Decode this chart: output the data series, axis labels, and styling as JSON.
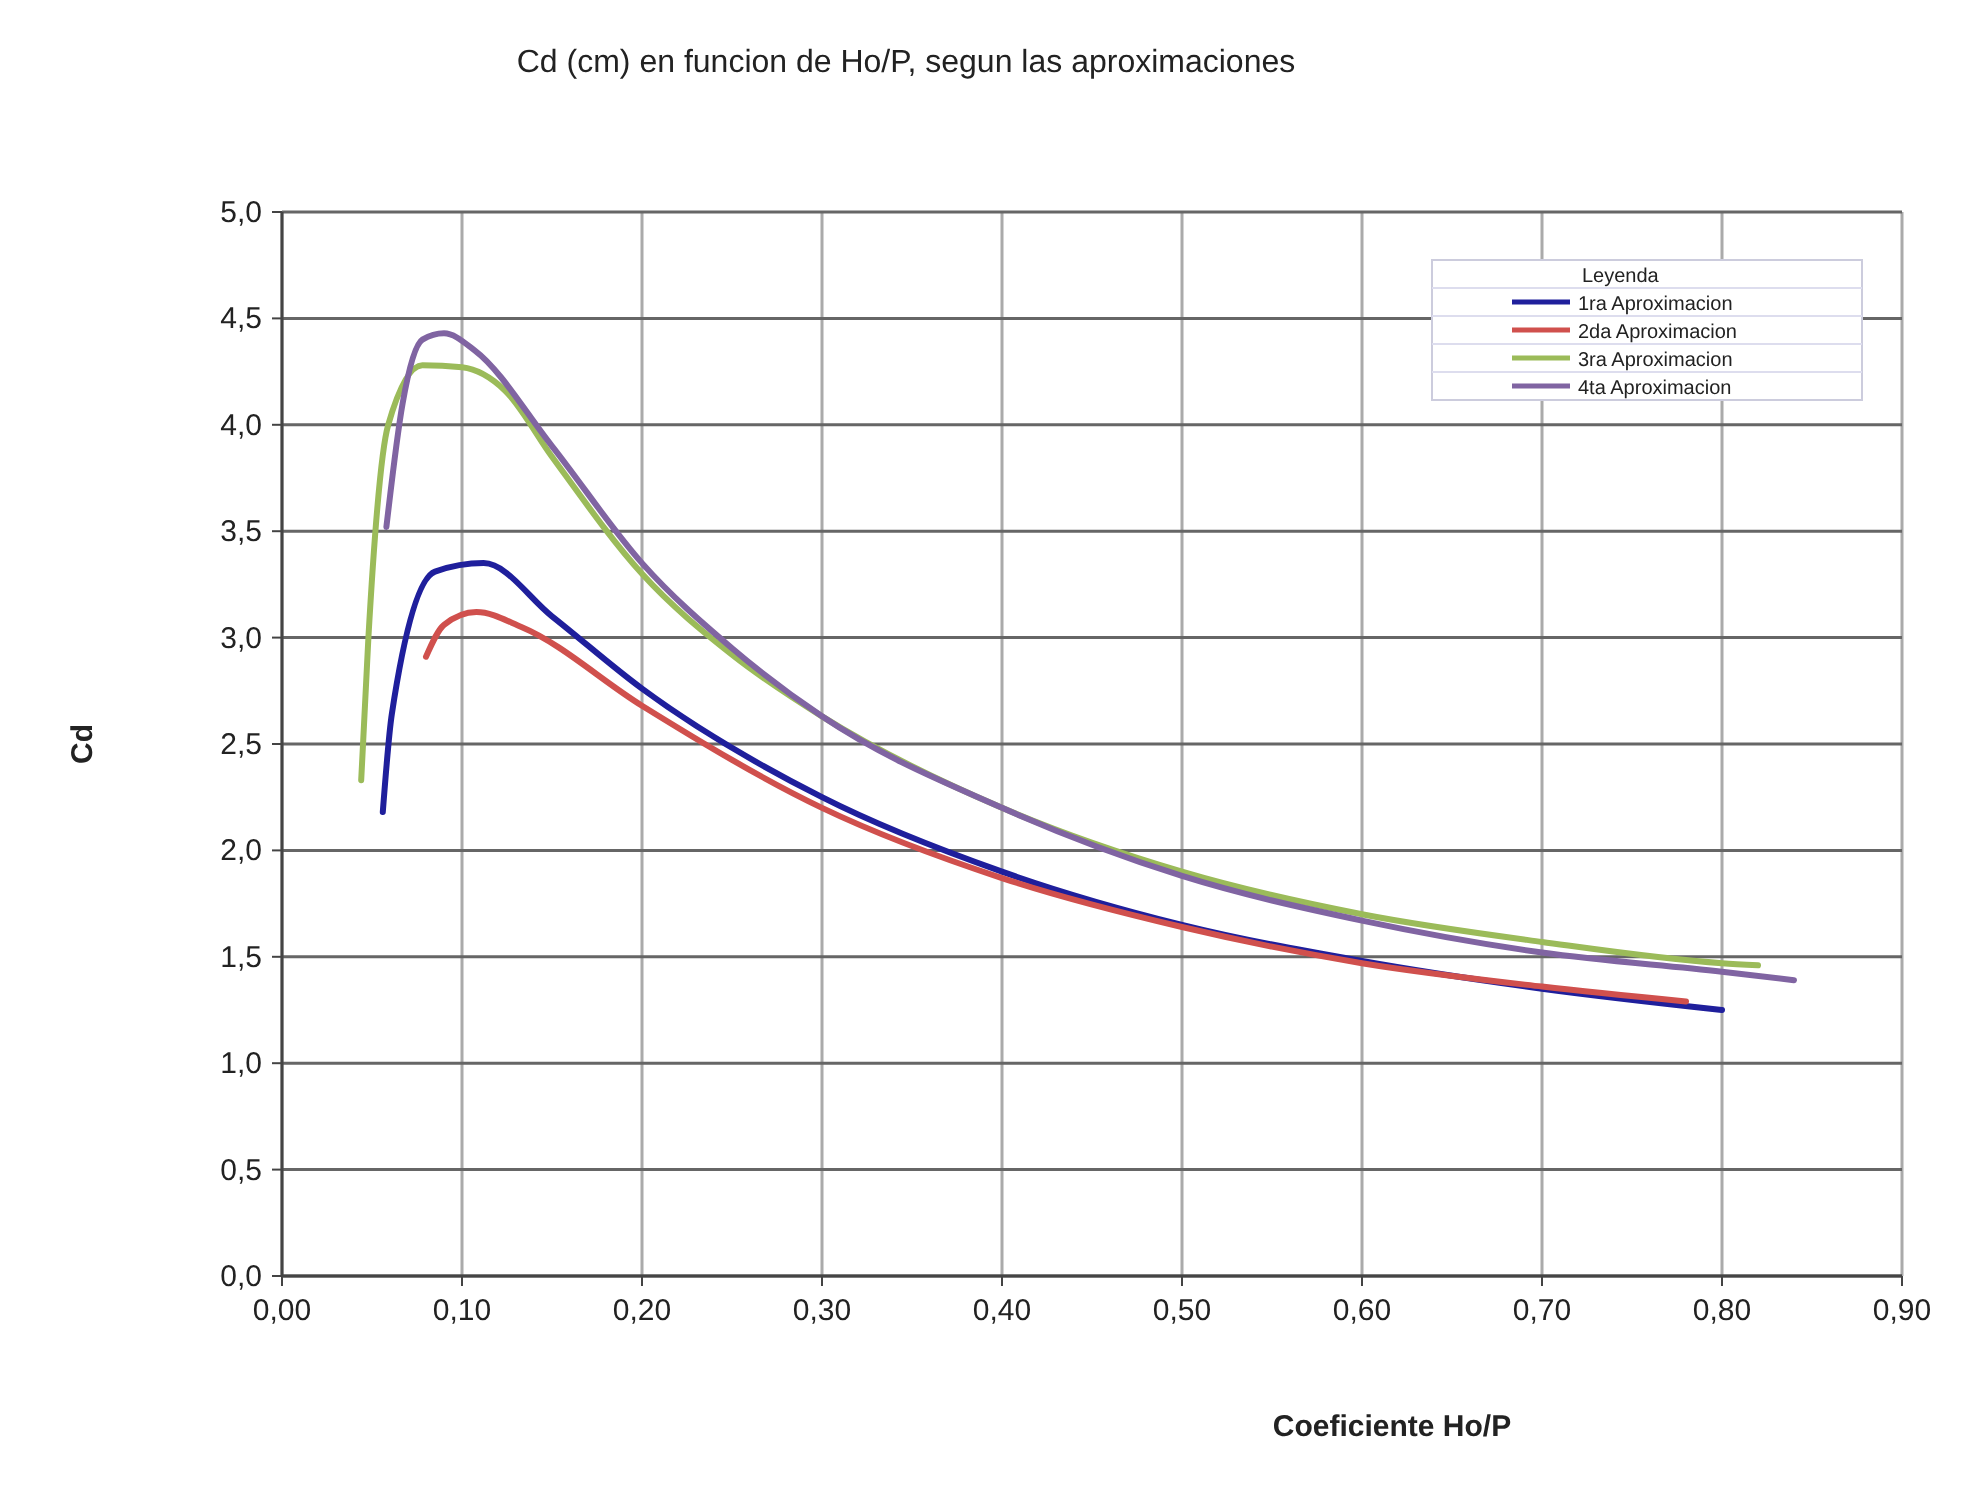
{
  "chart_data": {
    "type": "line",
    "title": "Cd (cm) en funcion de Ho/P, segun las aproximaciones",
    "xlabel": "Coeficiente Ho/P",
    "ylabel": "Cd",
    "legend_title": "Leyenda",
    "legend": "top right",
    "grid": true,
    "marker": "none",
    "line_style": "solid",
    "xlim": [
      0,
      0.9
    ],
    "xticks": [
      {
        "value": 0,
        "label": "0,00"
      },
      {
        "value": 0.1,
        "label": "0,10"
      },
      {
        "value": 0.2,
        "label": "0,20"
      },
      {
        "value": 0.3,
        "label": "0,30"
      },
      {
        "value": 0.4,
        "label": "0,40"
      },
      {
        "value": 0.5,
        "label": "0,50"
      },
      {
        "value": 0.6,
        "label": "0,60"
      },
      {
        "value": 0.7,
        "label": "0,70"
      },
      {
        "value": 0.8,
        "label": "0,80"
      },
      {
        "value": 0.9,
        "label": "0,90"
      }
    ],
    "ylim": [
      0,
      5
    ],
    "yticks": [
      {
        "value": 0,
        "label": "0,0"
      },
      {
        "value": 0.5,
        "label": "0,5"
      },
      {
        "value": 1,
        "label": "1,0"
      },
      {
        "value": 1.5,
        "label": "1,5"
      },
      {
        "value": 2,
        "label": "2,0"
      },
      {
        "value": 2.5,
        "label": "2,5"
      },
      {
        "value": 3,
        "label": "3,0"
      },
      {
        "value": 3.5,
        "label": "3,5"
      },
      {
        "value": 4,
        "label": "4,0"
      },
      {
        "value": 4.5,
        "label": "4,5"
      },
      {
        "value": 5,
        "label": "5,0"
      }
    ],
    "series": [
      {
        "name": "1ra Aproximacion",
        "color": "#1f1f9c",
        "x": [
          0.056,
          0.061,
          0.085,
          0.112,
          0.15,
          0.2,
          0.3,
          0.4,
          0.5,
          0.6,
          0.7,
          0.8
        ],
        "values": [
          2.18,
          2.64,
          3.31,
          3.35,
          3.1,
          2.76,
          2.25,
          1.9,
          1.65,
          1.48,
          1.35,
          1.25
        ]
      },
      {
        "name": "2da Aproximacion",
        "color": "#d0504d",
        "x": [
          0.08,
          0.09,
          0.108,
          0.133,
          0.2,
          0.3,
          0.4,
          0.5,
          0.6,
          0.7,
          0.78
        ],
        "values": [
          2.91,
          3.06,
          3.12,
          3.05,
          2.68,
          2.2,
          1.87,
          1.64,
          1.47,
          1.36,
          1.29
        ]
      },
      {
        "name": "3ra Aproximacion",
        "color": "#9bbb59",
        "x": [
          0.044,
          0.048,
          0.059,
          0.078,
          0.1,
          0.124,
          0.15,
          0.2,
          0.25,
          0.3,
          0.4,
          0.5,
          0.6,
          0.7,
          0.8,
          0.82
        ],
        "values": [
          2.33,
          3.0,
          4.0,
          4.28,
          4.27,
          4.16,
          3.85,
          3.3,
          2.92,
          2.63,
          2.2,
          1.9,
          1.7,
          1.57,
          1.47,
          1.46
        ]
      },
      {
        "name": "4ta Aproximacion",
        "color": "#8064a2",
        "x": [
          0.058,
          0.067,
          0.078,
          0.09,
          0.107,
          0.15,
          0.2,
          0.25,
          0.3,
          0.4,
          0.5,
          0.6,
          0.7,
          0.8,
          0.84
        ],
        "values": [
          3.52,
          4.1,
          4.4,
          4.43,
          4.35,
          3.9,
          3.35,
          2.95,
          2.63,
          2.2,
          1.88,
          1.67,
          1.52,
          1.43,
          1.39
        ]
      }
    ]
  }
}
